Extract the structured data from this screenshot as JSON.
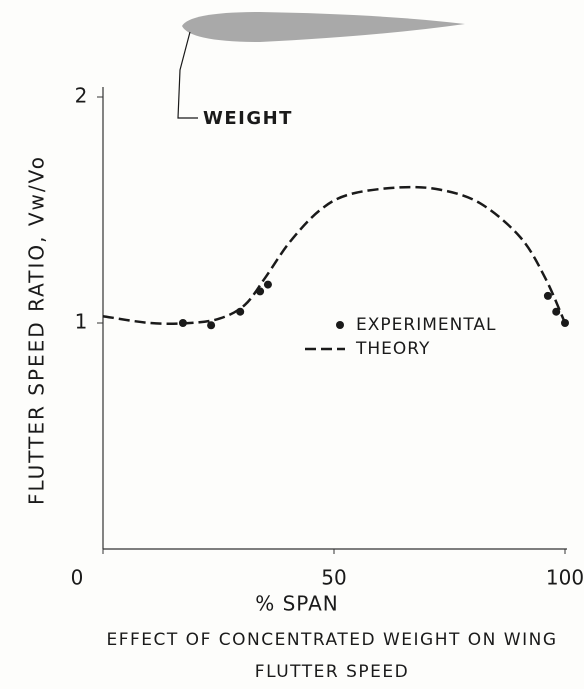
{
  "chart_data": {
    "type": "line",
    "title": "EFFECT OF CONCENTRATED WEIGHT ON WING FLUTTER SPEED",
    "x_label": "% SPAN",
    "y_label": "FLUTTER SPEED RATIO, Vw/Vo",
    "annotation": "WEIGHT",
    "xlim": [
      0,
      100
    ],
    "xticks": [
      0,
      50,
      100
    ],
    "ylim": [
      0,
      2
    ],
    "yticks": [
      1,
      2
    ],
    "grid": false,
    "series": [
      {
        "name": "EXPERIMENTAL",
        "color": "#1a1a1a",
        "style": "points",
        "x": [
          17.3,
          23.4,
          29.7,
          34.0,
          35.7,
          96.3,
          98.1,
          100
        ],
        "values": [
          1.0,
          0.99,
          1.05,
          1.14,
          1.17,
          1.12,
          1.05,
          1.0
        ]
      },
      {
        "name": "THEORY",
        "color": "#1a1a1a",
        "style": "dashed",
        "x": [
          0,
          10.2,
          18.8,
          25.3,
          30.7,
          35.1,
          40.5,
          47,
          53.5,
          64.3,
          72.9,
          81.6,
          90.3,
          95.7,
          100
        ],
        "values": [
          1.03,
          1.0,
          1.0,
          1.02,
          1.08,
          1.2,
          1.36,
          1.5,
          1.57,
          1.6,
          1.59,
          1.53,
          1.38,
          1.2,
          1.0
        ]
      }
    ]
  }
}
